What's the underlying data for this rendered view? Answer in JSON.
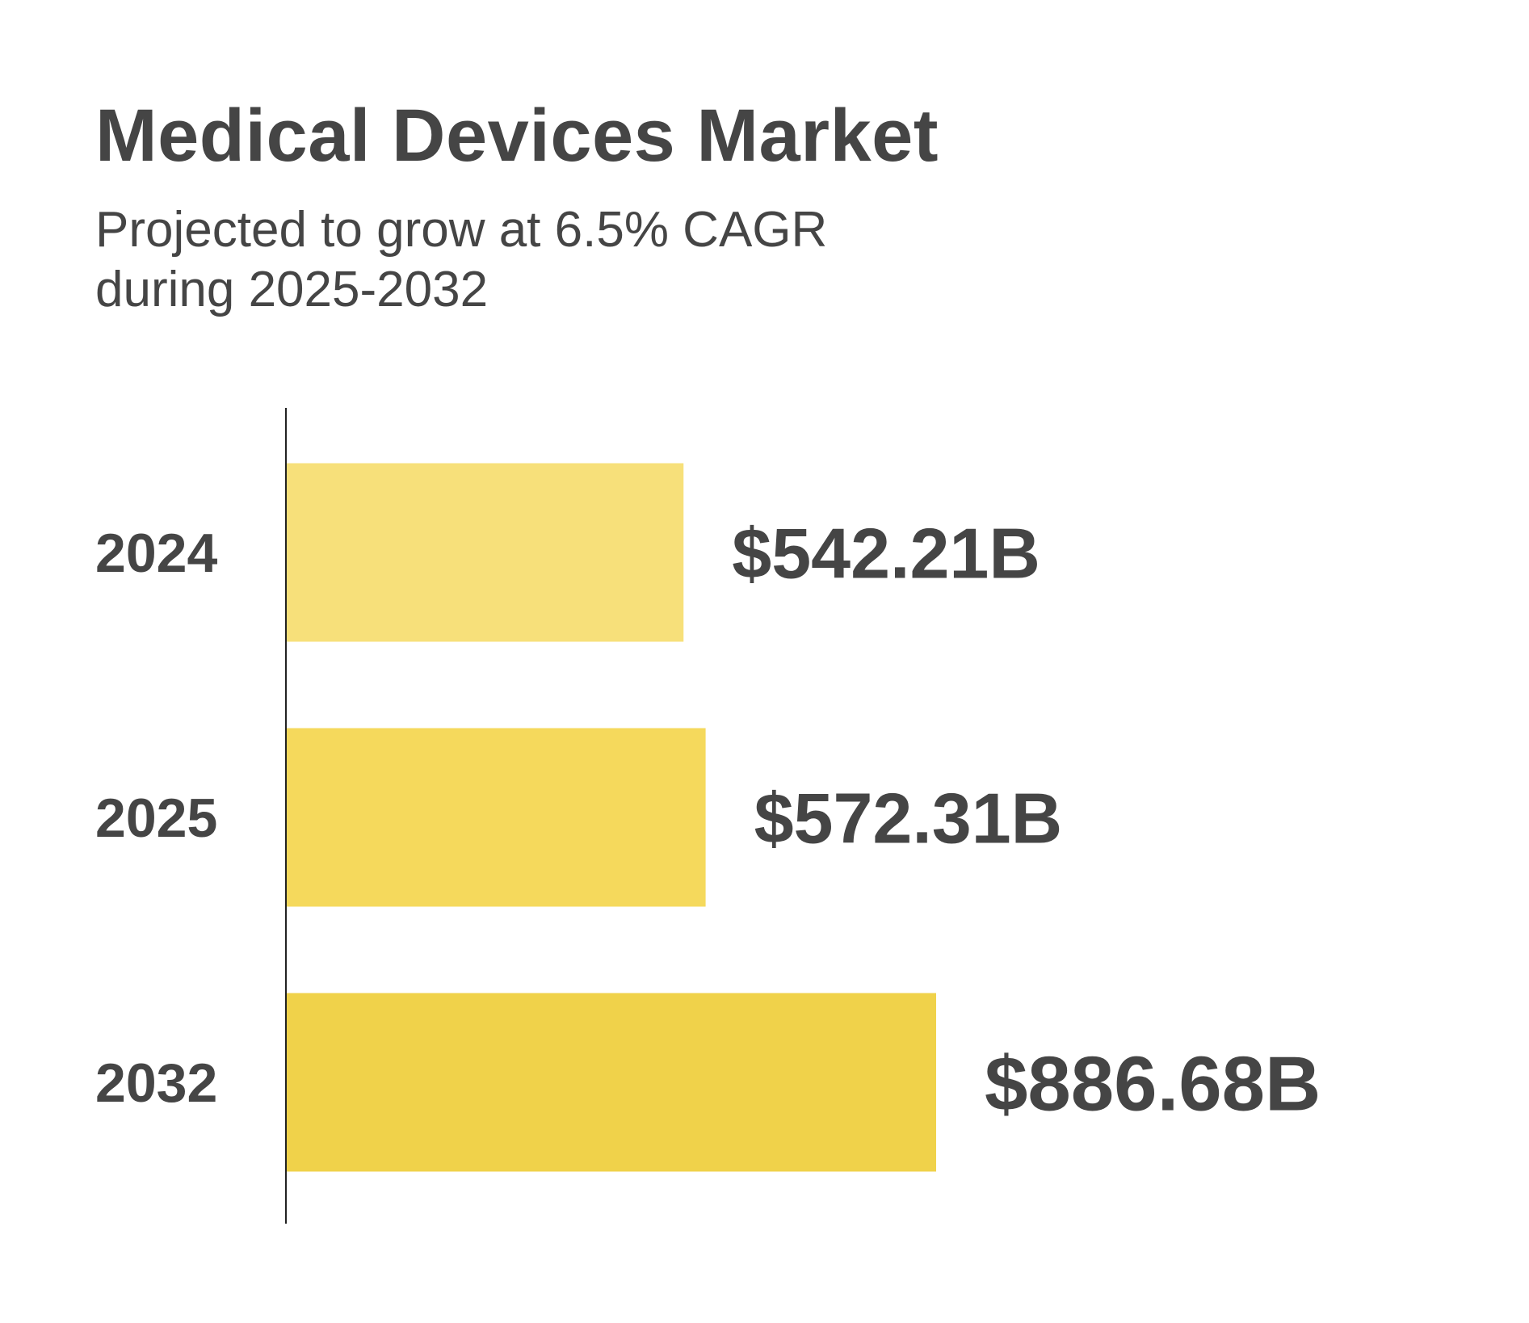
{
  "title": "Medical Devices Market",
  "subtitle": {
    "line1": "Projected to grow at 6.5% CAGR",
    "line2": "during 2025-2032"
  },
  "chart_data": {
    "type": "bar",
    "orientation": "horizontal",
    "title": "Medical Devices Market",
    "subtitle": "Projected to grow at 6.5% CAGR during 2025-2032",
    "categories": [
      "2024",
      "2025",
      "2032"
    ],
    "values": [
      542.21,
      572.31,
      886.68
    ],
    "value_labels": [
      "$542.21B",
      "$572.31B",
      "$886.68B"
    ],
    "colors": [
      "#f7e07a",
      "#f5d95c",
      "#f0d24a"
    ],
    "grid": false,
    "legend": "none"
  }
}
